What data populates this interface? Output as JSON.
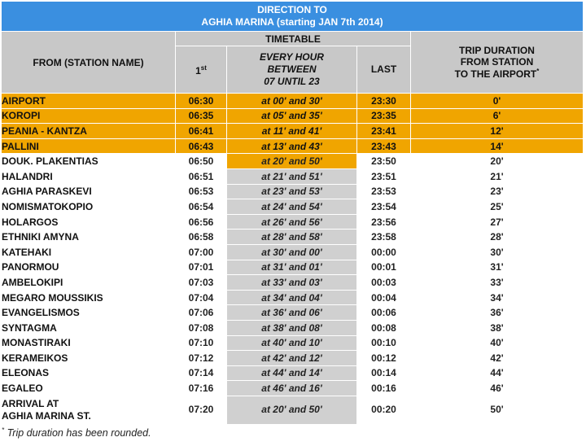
{
  "header": {
    "line1": "DIRECTION TO",
    "line2": "AGHIA MARINA (starting JAN 7th 2014)"
  },
  "columns": {
    "from": "FROM (STATION NAME)",
    "timetable": "TIMETABLE",
    "first": "1",
    "first_sup": "st",
    "every_line1": "EVERY HOUR",
    "every_line2": "BETWEEN",
    "every_line3": "07 UNTIL 23",
    "last": "LAST",
    "duration_line1": "TRIP DURATION",
    "duration_line2": "FROM STATION",
    "duration_line3": "TO THE AIRPORT",
    "duration_mark": "*"
  },
  "rows": [
    {
      "station": "AIRPORT",
      "first": "06:30",
      "every": "at 00' and 30'",
      "last": "23:30",
      "duration": "0'"
    },
    {
      "station": "KOROPI",
      "first": "06:35",
      "every": "at 05' and 35'",
      "last": "23:35",
      "duration": "6'"
    },
    {
      "station": "PEANIA - KANTZA",
      "first": "06:41",
      "every": "at 11' and 41'",
      "last": "23:41",
      "duration": "12'"
    },
    {
      "station": "PALLINI",
      "first": "06:43",
      "every": "at 13' and 43'",
      "last": "23:43",
      "duration": "14'"
    },
    {
      "station": "DOUK. PLAKENTIAS",
      "first": "06:50",
      "every": "at 20' and 50'",
      "last": "23:50",
      "duration": "20'"
    },
    {
      "station": "HALANDRI",
      "first": "06:51",
      "every": "at 21' and 51'",
      "last": "23:51",
      "duration": "21'"
    },
    {
      "station": "AGHIA PARASKEVI",
      "first": "06:53",
      "every": "at 23' and 53'",
      "last": "23:53",
      "duration": "23'"
    },
    {
      "station": "NOMISMATOKOPIO",
      "first": "06:54",
      "every": "at 24' and 54'",
      "last": "23:54",
      "duration": "25'"
    },
    {
      "station": "HOLARGOS",
      "first": "06:56",
      "every": "at 26' and 56'",
      "last": "23:56",
      "duration": "27'"
    },
    {
      "station": "ETHNIKI AMYNA",
      "first": "06:58",
      "every": "at 28' and 58'",
      "last": "23:58",
      "duration": "28'"
    },
    {
      "station": "KATEHAKI",
      "first": "07:00",
      "every": "at 30' and 00'",
      "last": "00:00",
      "duration": "30'"
    },
    {
      "station": "PANORMOU",
      "first": "07:01",
      "every": "at 31' and 01'",
      "last": "00:01",
      "duration": "31'"
    },
    {
      "station": "AMBELOKIPI",
      "first": "07:03",
      "every": "at 33' and 03'",
      "last": "00:03",
      "duration": "33'"
    },
    {
      "station": "MEGARO MOUSSIKIS",
      "first": "07:04",
      "every": "at 34' and 04'",
      "last": "00:04",
      "duration": "34'"
    },
    {
      "station": "EVANGELISMOS",
      "first": "07:06",
      "every": "at 36' and 06'",
      "last": "00:06",
      "duration": "36'"
    },
    {
      "station": "SYNTAGMA",
      "first": "07:08",
      "every": "at 38' and 08'",
      "last": "00:08",
      "duration": "38'"
    },
    {
      "station": "MONASTIRAKI",
      "first": "07:10",
      "every": "at 40' and 10'",
      "last": "00:10",
      "duration": "40'"
    },
    {
      "station": "KERAMEIKOS",
      "first": "07:12",
      "every": "at 42' and 12'",
      "last": "00:12",
      "duration": "42'"
    },
    {
      "station": "ELEONAS",
      "first": "07:14",
      "every": "at 44' and 14'",
      "last": "00:14",
      "duration": "44'"
    },
    {
      "station": "EGALEO",
      "first": "07:16",
      "every": "at 46' and 16'",
      "last": "00:16",
      "duration": "46'"
    }
  ],
  "arrival": {
    "station_line1": "ARRIVAL AT",
    "station_line2": "AGHIA MARINA ST.",
    "first": "07:20",
    "every": "at 20' and 50'",
    "last": "00:20",
    "duration": "50'"
  },
  "footnote": {
    "mark": "*",
    "text": " Trip duration has been rounded."
  },
  "colors": {
    "header_blue": "#3a8fe0",
    "highlight_orange": "#f0a500",
    "cell_gray": "#d0d0d0"
  }
}
